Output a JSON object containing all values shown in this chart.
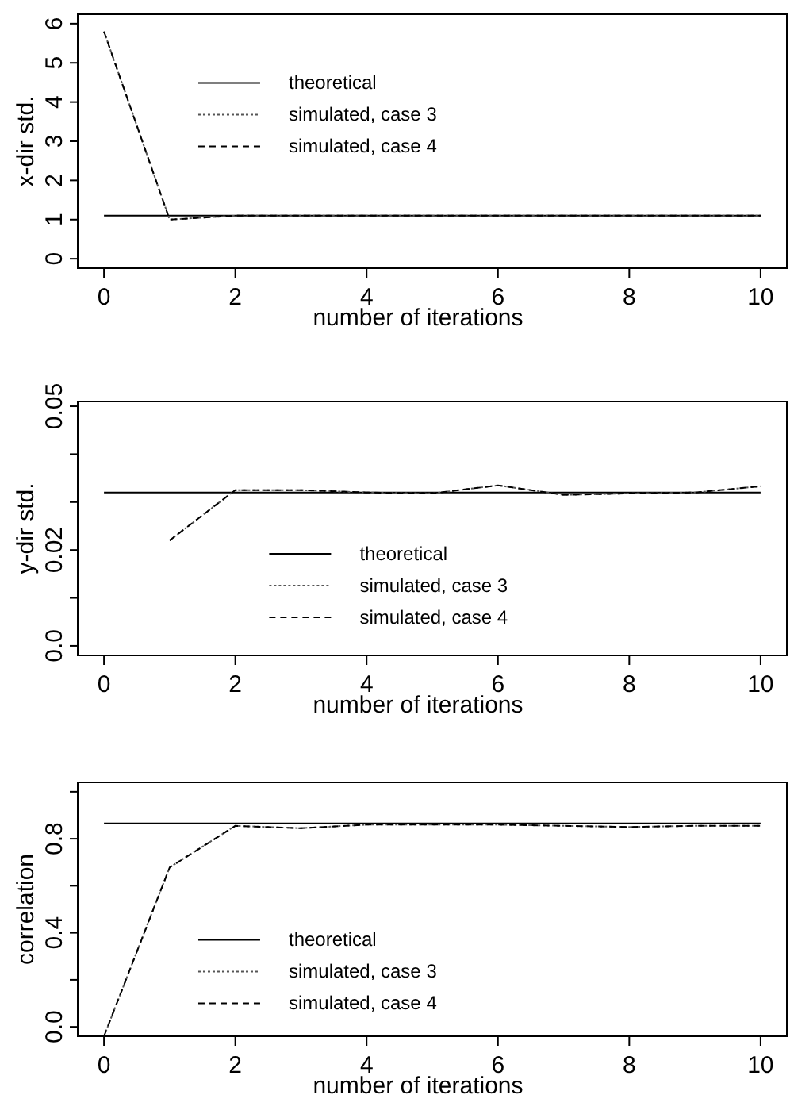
{
  "chart_data": [
    {
      "type": "line",
      "xlabel": "number of iterations",
      "ylabel": "x-dir std.",
      "xlim": [
        -0.4,
        10.4
      ],
      "ylim": [
        -0.24,
        6.24
      ],
      "xticks": [
        0,
        2,
        4,
        6,
        8,
        10
      ],
      "yticks": [
        0,
        1,
        2,
        3,
        4,
        5,
        6
      ],
      "grid": false,
      "legend": "top left",
      "x": [
        0,
        1,
        2,
        3,
        4,
        5,
        6,
        7,
        8,
        9,
        10
      ],
      "series": [
        {
          "name": "theoretical",
          "color": "#000000",
          "line_style": "solid",
          "values": [
            1.1,
            1.1,
            1.1,
            1.1,
            1.1,
            1.1,
            1.1,
            1.1,
            1.1,
            1.1,
            1.1
          ]
        },
        {
          "name": "simulated, case 3",
          "color": "#555555",
          "line_style": "dotted",
          "values": [
            5.8,
            1.0,
            1.1,
            1.1,
            1.1,
            1.1,
            1.1,
            1.1,
            1.1,
            1.1,
            1.1
          ]
        },
        {
          "name": "simulated, case 4",
          "color": "#000000",
          "line_style": "dashed",
          "values": [
            5.8,
            1.0,
            1.1,
            1.1,
            1.1,
            1.1,
            1.1,
            1.1,
            1.1,
            1.1,
            1.1
          ]
        }
      ]
    },
    {
      "type": "line",
      "xlabel": "number of iterations",
      "ylabel": "y-dir std.",
      "xlim": [
        -0.4,
        10.4
      ],
      "ylim": [
        -0.002,
        0.051
      ],
      "xticks": [
        0,
        2,
        4,
        6,
        8,
        10
      ],
      "yticks": [
        {
          "value": 0,
          "label": "0.0"
        },
        {
          "value": 0.01,
          "label": null
        },
        {
          "value": 0.02,
          "label": "0.02"
        },
        {
          "value": 0.03,
          "label": null
        },
        {
          "value": 0.04,
          "label": null
        },
        {
          "value": 0.05,
          "label": "0.05"
        }
      ],
      "grid": false,
      "legend": "bottom",
      "x": [
        0,
        1,
        2,
        3,
        4,
        5,
        6,
        7,
        8,
        9,
        10
      ],
      "series": [
        {
          "name": "theoretical",
          "color": "#000000",
          "line_style": "solid",
          "values": [
            0.032,
            0.032,
            0.032,
            0.032,
            0.032,
            0.032,
            0.032,
            0.032,
            0.032,
            0.032,
            0.032
          ]
        },
        {
          "name": "simulated, case 3",
          "color": "#555555",
          "line_style": "dotted",
          "values": [
            null,
            0.022,
            0.0325,
            0.0325,
            0.032,
            0.0318,
            0.0335,
            0.0315,
            0.0318,
            0.032,
            0.0333
          ]
        },
        {
          "name": "simulated, case 4",
          "color": "#000000",
          "line_style": "dashed",
          "values": [
            null,
            0.022,
            0.0325,
            0.0325,
            0.032,
            0.0318,
            0.0335,
            0.0315,
            0.0318,
            0.032,
            0.0333
          ]
        }
      ]
    },
    {
      "type": "line",
      "xlabel": "number of iterations",
      "ylabel": "correlation",
      "xlim": [
        -0.4,
        10.4
      ],
      "ylim": [
        -0.04,
        1.04
      ],
      "xticks": [
        0,
        2,
        4,
        6,
        8,
        10
      ],
      "yticks": [
        {
          "value": 0,
          "label": "0.0"
        },
        {
          "value": 0.2,
          "label": null
        },
        {
          "value": 0.4,
          "label": "0.4"
        },
        {
          "value": 0.6,
          "label": null
        },
        {
          "value": 0.8,
          "label": "0.8"
        },
        {
          "value": 1.0,
          "label": null
        }
      ],
      "grid": false,
      "legend": "bottom left",
      "x": [
        0,
        1,
        2,
        3,
        4,
        5,
        6,
        7,
        8,
        9,
        10
      ],
      "series": [
        {
          "name": "theoretical",
          "color": "#000000",
          "line_style": "solid",
          "values": [
            0.865,
            0.865,
            0.865,
            0.865,
            0.865,
            0.865,
            0.865,
            0.865,
            0.865,
            0.865,
            0.865
          ]
        },
        {
          "name": "simulated, case 3",
          "color": "#555555",
          "line_style": "dotted",
          "values": [
            -0.04,
            0.678,
            0.855,
            0.845,
            0.86,
            0.86,
            0.86,
            0.855,
            0.85,
            0.855,
            0.855
          ]
        },
        {
          "name": "simulated, case 4",
          "color": "#000000",
          "line_style": "dashed",
          "values": [
            -0.04,
            0.678,
            0.855,
            0.845,
            0.86,
            0.86,
            0.86,
            0.855,
            0.85,
            0.855,
            0.855
          ]
        }
      ]
    }
  ]
}
